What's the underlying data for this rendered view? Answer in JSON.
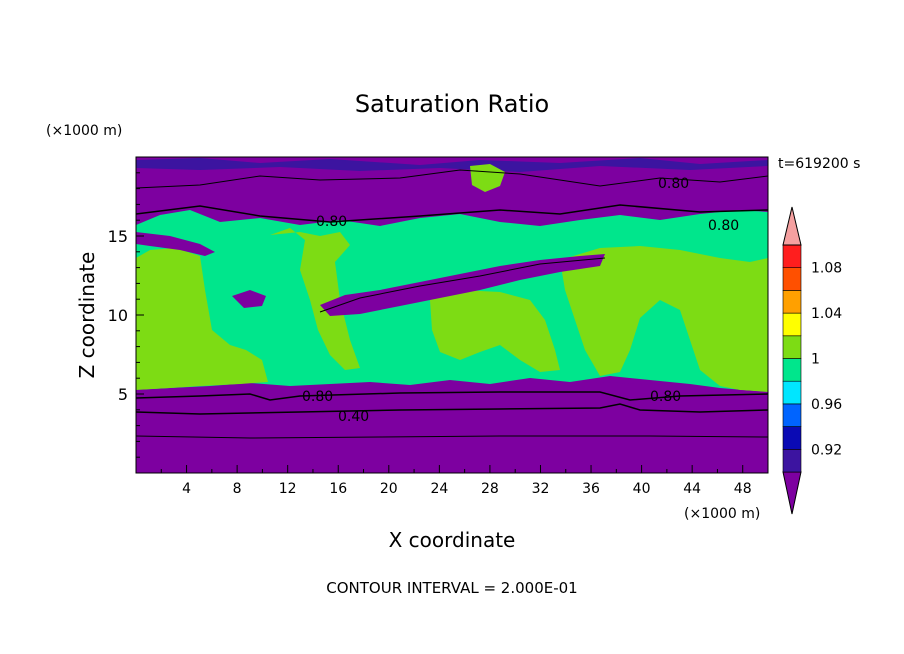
{
  "chart_data": {
    "type": "heatmap",
    "title": "Saturation Ratio",
    "xlabel": "X coordinate",
    "ylabel": "Z coordinate",
    "x_unit": "(×1000 m)",
    "y_unit": "(×1000 m)",
    "time_label": "t=619200 s",
    "footer": "CONTOUR INTERVAL = 2.000E-01",
    "xlim": [
      0,
      50
    ],
    "ylim": [
      0,
      20
    ],
    "x_ticks": [
      "4",
      "8",
      "12",
      "16",
      "20",
      "24",
      "28",
      "32",
      "36",
      "40",
      "44",
      "48"
    ],
    "y_ticks": [
      "5",
      "10",
      "15"
    ],
    "colorbar": {
      "tick_labels": [
        "0.92",
        "0.96",
        "1",
        "1.04",
        "1.08"
      ],
      "colors": [
        "#7d00a0",
        "#3c14a0",
        "#0a0ab4",
        "#0064ff",
        "#00e6ff",
        "#00e68c",
        "#7ddc14",
        "#ffff00",
        "#ffa000",
        "#ff5000",
        "#ff1e1e",
        "#f5a0a0"
      ]
    },
    "contour_labels": [
      "0.80",
      "0.80",
      "0.80",
      "0.80",
      "0.80",
      "0.40"
    ]
  }
}
